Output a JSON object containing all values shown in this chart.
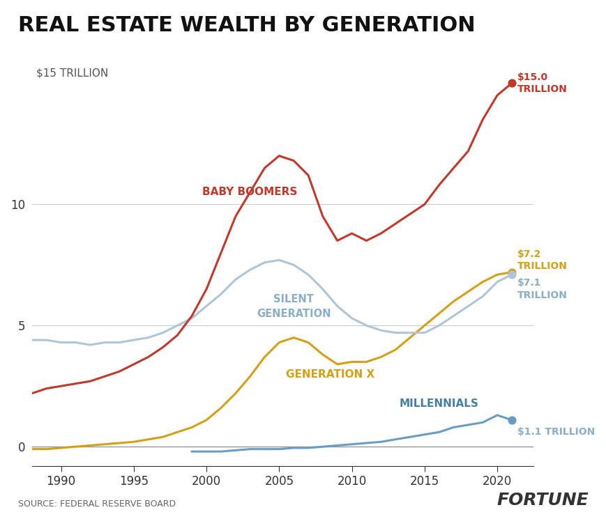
{
  "title": "REAL ESTATE WEALTH BY GENERATION",
  "source": "SOURCE: FEDERAL RESERVE BOARD",
  "brand": "FORTUNE",
  "ylabel": "$15 TRILLION",
  "yticks": [
    0,
    5,
    10
  ],
  "ylim": [
    -0.8,
    16.5
  ],
  "xlim": [
    1988.0,
    2022.5
  ],
  "xticks": [
    1990,
    1995,
    2000,
    2005,
    2010,
    2015,
    2020
  ],
  "colors": {
    "baby_boomers": "#c0392b",
    "silent_generation": "#aec6d8",
    "generation_x": "#d4a017",
    "millennials": "#6b9dc2",
    "background": "#ffffff"
  },
  "labels": {
    "baby_boomers": "BABY BOOMERS",
    "silent_generation": "SILENT\nGENERATION",
    "generation_x": "GENERATION X",
    "millennials": "MILLENNIALS"
  },
  "end_labels": {
    "baby_boomers": "$15.0\nTRILLION",
    "silent_generation": "$7.1\nTRILLION",
    "generation_x": "$7.2\nTRILLION",
    "millennials": "$1.1 TRILLION"
  },
  "baby_boomers_x": [
    1988,
    1989,
    1990,
    1991,
    1992,
    1993,
    1994,
    1995,
    1996,
    1997,
    1998,
    1999,
    2000,
    2001,
    2002,
    2003,
    2004,
    2005,
    2006,
    2007,
    2008,
    2009,
    2010,
    2011,
    2012,
    2013,
    2014,
    2015,
    2016,
    2017,
    2018,
    2019,
    2020,
    2021
  ],
  "baby_boomers_y": [
    2.2,
    2.4,
    2.5,
    2.6,
    2.7,
    2.9,
    3.1,
    3.4,
    3.7,
    4.1,
    4.6,
    5.4,
    6.5,
    8.0,
    9.5,
    10.5,
    11.5,
    12.0,
    11.8,
    11.2,
    9.5,
    8.5,
    8.8,
    8.5,
    8.8,
    9.2,
    9.6,
    10.0,
    10.8,
    11.5,
    12.2,
    13.5,
    14.5,
    15.0
  ],
  "silent_x": [
    1988,
    1989,
    1990,
    1991,
    1992,
    1993,
    1994,
    1995,
    1996,
    1997,
    1998,
    1999,
    2000,
    2001,
    2002,
    2003,
    2004,
    2005,
    2006,
    2007,
    2008,
    2009,
    2010,
    2011,
    2012,
    2013,
    2014,
    2015,
    2016,
    2017,
    2018,
    2019,
    2020,
    2021
  ],
  "silent_y": [
    4.4,
    4.4,
    4.3,
    4.3,
    4.2,
    4.3,
    4.3,
    4.4,
    4.5,
    4.7,
    5.0,
    5.3,
    5.8,
    6.3,
    6.9,
    7.3,
    7.6,
    7.7,
    7.5,
    7.1,
    6.5,
    5.8,
    5.3,
    5.0,
    4.8,
    4.7,
    4.7,
    4.7,
    5.0,
    5.4,
    5.8,
    6.2,
    6.8,
    7.1
  ],
  "genx_x": [
    1988,
    1989,
    1990,
    1991,
    1992,
    1993,
    1994,
    1995,
    1996,
    1997,
    1998,
    1999,
    2000,
    2001,
    2002,
    2003,
    2004,
    2005,
    2006,
    2007,
    2008,
    2009,
    2010,
    2011,
    2012,
    2013,
    2014,
    2015,
    2016,
    2017,
    2018,
    2019,
    2020,
    2021
  ],
  "genx_y": [
    -0.1,
    -0.1,
    -0.05,
    0.0,
    0.05,
    0.1,
    0.15,
    0.2,
    0.3,
    0.4,
    0.6,
    0.8,
    1.1,
    1.6,
    2.2,
    2.9,
    3.7,
    4.3,
    4.5,
    4.3,
    3.8,
    3.4,
    3.5,
    3.5,
    3.7,
    4.0,
    4.5,
    5.0,
    5.5,
    6.0,
    6.4,
    6.8,
    7.1,
    7.2
  ],
  "millennials_x": [
    1999,
    2000,
    2001,
    2002,
    2003,
    2004,
    2005,
    2006,
    2007,
    2008,
    2009,
    2010,
    2011,
    2012,
    2013,
    2014,
    2015,
    2016,
    2017,
    2018,
    2019,
    2020,
    2021
  ],
  "millennials_y": [
    -0.2,
    -0.2,
    -0.2,
    -0.15,
    -0.1,
    -0.1,
    -0.1,
    -0.05,
    -0.05,
    0.0,
    0.05,
    0.1,
    0.15,
    0.2,
    0.3,
    0.4,
    0.5,
    0.6,
    0.8,
    0.9,
    1.0,
    1.3,
    1.1
  ]
}
